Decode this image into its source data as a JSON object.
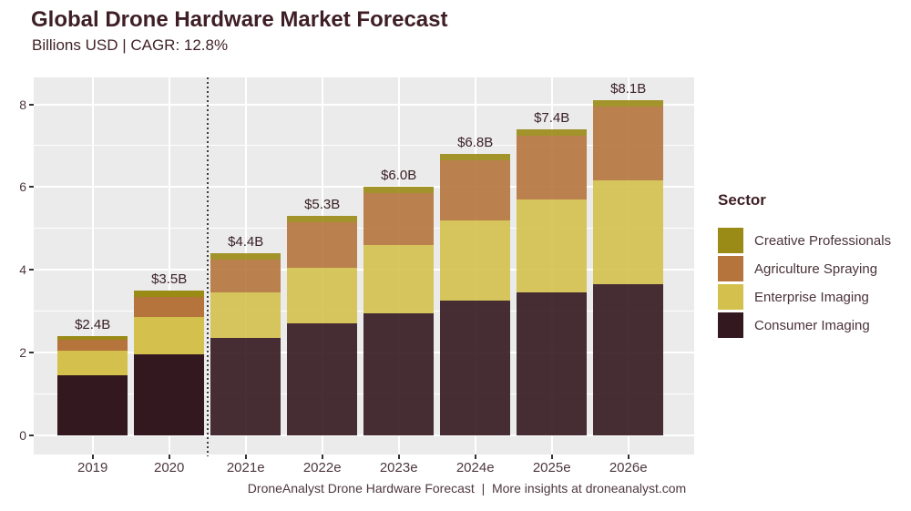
{
  "header": {
    "title": "Global Drone Hardware Market Forecast",
    "subtitle": "Billions USD | CAGR: 12.8%"
  },
  "chart_data": {
    "type": "bar",
    "stacked": true,
    "title": "Global Drone Hardware Market Forecast",
    "subtitle": "Billions USD | CAGR: 12.8%",
    "ylabel": "",
    "xlabel": "",
    "categories": [
      "2019",
      "2020",
      "2021e",
      "2022e",
      "2023e",
      "2024e",
      "2025e",
      "2026e"
    ],
    "is_forecast": [
      false,
      false,
      true,
      true,
      true,
      true,
      true,
      true
    ],
    "series": [
      {
        "name": "Consumer Imaging",
        "color": "#33181f",
        "values": [
          1.45,
          1.95,
          2.35,
          2.7,
          2.95,
          3.25,
          3.45,
          3.65
        ]
      },
      {
        "name": "Enterprise Imaging",
        "color": "#d4c04d",
        "values": [
          0.6,
          0.9,
          1.1,
          1.35,
          1.65,
          1.95,
          2.25,
          2.5
        ]
      },
      {
        "name": "Agriculture Spraying",
        "color": "#b5743c",
        "values": [
          0.25,
          0.5,
          0.8,
          1.1,
          1.25,
          1.45,
          1.55,
          1.8
        ]
      },
      {
        "name": "Creative Professionals",
        "color": "#9a8a16",
        "values": [
          0.1,
          0.15,
          0.15,
          0.15,
          0.15,
          0.15,
          0.15,
          0.15
        ]
      }
    ],
    "totals": [
      2.4,
      3.5,
      4.4,
      5.3,
      6.0,
      6.8,
      7.4,
      8.1
    ],
    "total_labels": [
      "$2.4B",
      "$3.5B",
      "$4.4B",
      "$5.3B",
      "$6.0B",
      "$6.8B",
      "$7.4B",
      "$8.1B"
    ],
    "yticks": [
      0,
      2,
      4,
      6,
      8
    ],
    "yticks_minor": [
      1,
      3,
      5,
      7
    ],
    "ylim": [
      0,
      8.65
    ],
    "grid": true,
    "forecast_divider_between": [
      "2020",
      "2021e"
    ],
    "legend_position": "right"
  },
  "legend": {
    "title": "Sector",
    "items": [
      {
        "label": "Creative Professionals",
        "color": "#9a8a16"
      },
      {
        "label": "Agriculture Spraying",
        "color": "#b5743c"
      },
      {
        "label": "Enterprise Imaging",
        "color": "#d4c04d"
      },
      {
        "label": "Consumer Imaging",
        "color": "#33181f"
      }
    ]
  },
  "caption": {
    "text": "DroneAnalyst Drone Hardware Forecast  |  More insights at droneanalyst.com"
  },
  "colors": {
    "panel_background": "#ebebeb",
    "gridline": "#ffffff",
    "title_text": "#3e1f26",
    "axis_text": "#4d383e",
    "value_label_text": "#3a2127",
    "tick_mark": "#333333",
    "divider_line": "#3c3c3c",
    "forecast_bar_opacity": 0.9
  }
}
